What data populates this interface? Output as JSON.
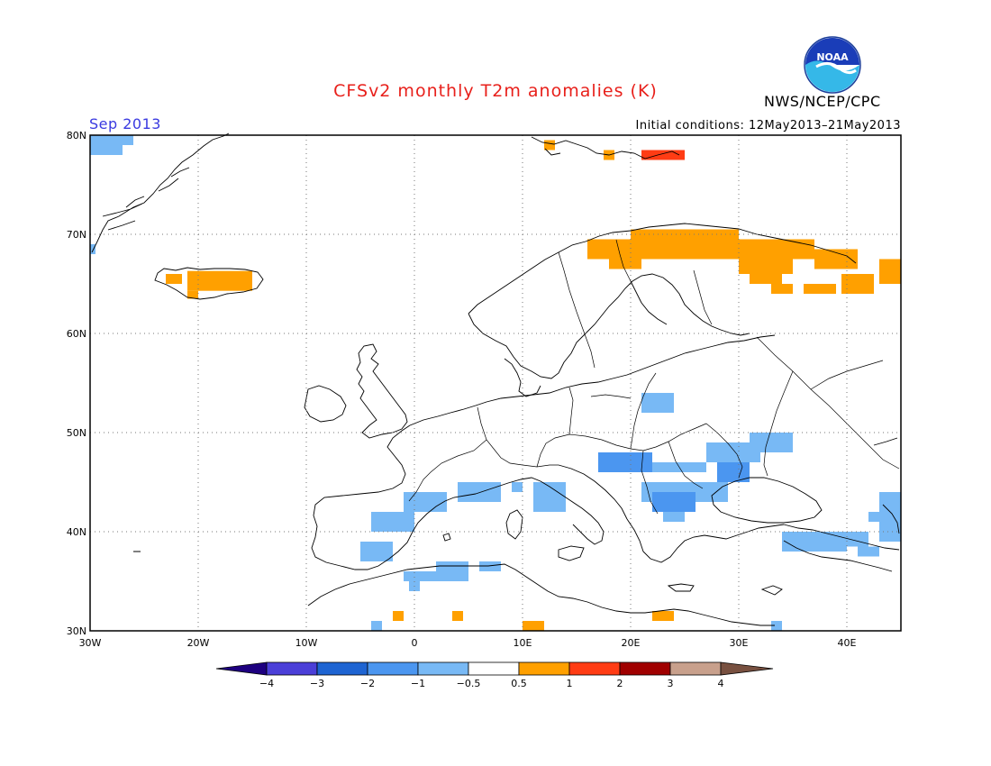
{
  "header": {
    "title": "CFSv2 monthly T2m anomalies (K)",
    "month": "Sep 2013",
    "initial_conditions": "Initial conditions: 12May2013–21May2013",
    "agency": "NWS/NCEP/CPC",
    "logo": {
      "text": "NOAA",
      "icon": "noaa-logo"
    }
  },
  "map": {
    "lon_range": [
      -30,
      45
    ],
    "lat_range": [
      30,
      80
    ],
    "lon_ticks": [
      {
        "value": -30,
        "label": "30W"
      },
      {
        "value": -20,
        "label": "20W"
      },
      {
        "value": -10,
        "label": "10W"
      },
      {
        "value": 0,
        "label": "0"
      },
      {
        "value": 10,
        "label": "10E"
      },
      {
        "value": 20,
        "label": "20E"
      },
      {
        "value": 30,
        "label": "30E"
      },
      {
        "value": 40,
        "label": "40E"
      }
    ],
    "lat_ticks": [
      {
        "value": 30,
        "label": "30N"
      },
      {
        "value": 40,
        "label": "40N"
      },
      {
        "value": 50,
        "label": "50N"
      },
      {
        "value": 60,
        "label": "60N"
      },
      {
        "value": 70,
        "label": "70N"
      },
      {
        "value": 80,
        "label": "80N"
      }
    ],
    "grid": true,
    "anomaly_cells": [
      {
        "lon": [
          -30,
          -26
        ],
        "lat": [
          79,
          80
        ],
        "anomaly": -0.75
      },
      {
        "lon": [
          -30,
          -27
        ],
        "lat": [
          78,
          79
        ],
        "anomaly": -0.75
      },
      {
        "lon": [
          -23,
          -21.5
        ],
        "lat": [
          65,
          66
        ],
        "anomaly": 0.75
      },
      {
        "lon": [
          -21,
          -15
        ],
        "lat": [
          64.3,
          66.3
        ],
        "anomaly": 0.75
      },
      {
        "lon": [
          -21,
          -20
        ],
        "lat": [
          63.5,
          64.3
        ],
        "anomaly": 0.75
      },
      {
        "lon": [
          -19,
          -18
        ],
        "lat": [
          64.5,
          65.5
        ],
        "anomaly": 0.75
      },
      {
        "lon": [
          12,
          13
        ],
        "lat": [
          78.5,
          79.5
        ],
        "anomaly": 0.75
      },
      {
        "lon": [
          17.5,
          18.5
        ],
        "lat": [
          77.5,
          78.5
        ],
        "anomaly": 0.75
      },
      {
        "lon": [
          21,
          25
        ],
        "lat": [
          77.5,
          78.5
        ],
        "anomaly": 1.5
      },
      {
        "lon": [
          16,
          27
        ],
        "lat": [
          67.5,
          69.5
        ],
        "anomaly": 0.75
      },
      {
        "lon": [
          18,
          21
        ],
        "lat": [
          66.5,
          67.5
        ],
        "anomaly": 0.75
      },
      {
        "lon": [
          20,
          30
        ],
        "lat": [
          69.5,
          70.5
        ],
        "anomaly": 0.75
      },
      {
        "lon": [
          27,
          37
        ],
        "lat": [
          67.5,
          69.5
        ],
        "anomaly": 0.75
      },
      {
        "lon": [
          37,
          41
        ],
        "lat": [
          66.5,
          68.5
        ],
        "anomaly": 0.75
      },
      {
        "lon": [
          30,
          35
        ],
        "lat": [
          66,
          67.5
        ],
        "anomaly": 0.75
      },
      {
        "lon": [
          31,
          34
        ],
        "lat": [
          65,
          66
        ],
        "anomaly": 0.75
      },
      {
        "lon": [
          33,
          35
        ],
        "lat": [
          64,
          65
        ],
        "anomaly": 0.75
      },
      {
        "lon": [
          36,
          39
        ],
        "lat": [
          64,
          65
        ],
        "anomaly": 0.75
      },
      {
        "lon": [
          39.5,
          42.5
        ],
        "lat": [
          64,
          66
        ],
        "anomaly": 0.75
      },
      {
        "lon": [
          43,
          45
        ],
        "lat": [
          65,
          67.5
        ],
        "anomaly": 0.75
      },
      {
        "lon": [
          -30,
          -29.5
        ],
        "lat": [
          68,
          69
        ],
        "anomaly": -0.75
      },
      {
        "lon": [
          21,
          24
        ],
        "lat": [
          52,
          54
        ],
        "anomaly": -0.75
      },
      {
        "lon": [
          17,
          22
        ],
        "lat": [
          46,
          48
        ],
        "anomaly": -1.5
      },
      {
        "lon": [
          22,
          27
        ],
        "lat": [
          46,
          47
        ],
        "anomaly": -0.75
      },
      {
        "lon": [
          27,
          32
        ],
        "lat": [
          47,
          49
        ],
        "anomaly": -0.75
      },
      {
        "lon": [
          31,
          35
        ],
        "lat": [
          48,
          50
        ],
        "anomaly": -0.75
      },
      {
        "lon": [
          28,
          31
        ],
        "lat": [
          45,
          47
        ],
        "anomaly": -1.5
      },
      {
        "lon": [
          21,
          29
        ],
        "lat": [
          43,
          45
        ],
        "anomaly": -0.75
      },
      {
        "lon": [
          22,
          26
        ],
        "lat": [
          42,
          44
        ],
        "anomaly": -1.5
      },
      {
        "lon": [
          23,
          25
        ],
        "lat": [
          41,
          42
        ],
        "anomaly": -0.75
      },
      {
        "lon": [
          -1,
          3
        ],
        "lat": [
          42,
          44
        ],
        "anomaly": -0.75
      },
      {
        "lon": [
          4,
          8
        ],
        "lat": [
          43,
          45
        ],
        "anomaly": -0.75
      },
      {
        "lon": [
          11,
          14
        ],
        "lat": [
          42,
          45
        ],
        "anomaly": -0.75
      },
      {
        "lon": [
          9,
          10
        ],
        "lat": [
          44,
          45
        ],
        "anomaly": -0.75
      },
      {
        "lon": [
          -4,
          0
        ],
        "lat": [
          40,
          42
        ],
        "anomaly": -0.75
      },
      {
        "lon": [
          -5,
          -2
        ],
        "lat": [
          37,
          39
        ],
        "anomaly": -0.75
      },
      {
        "lon": [
          -1,
          5
        ],
        "lat": [
          35,
          36
        ],
        "anomaly": -0.75
      },
      {
        "lon": [
          2,
          5
        ],
        "lat": [
          36,
          37
        ],
        "anomaly": -0.75
      },
      {
        "lon": [
          6,
          8
        ],
        "lat": [
          36,
          37
        ],
        "anomaly": -0.75
      },
      {
        "lon": [
          -0.5,
          0.5
        ],
        "lat": [
          34,
          35
        ],
        "anomaly": -0.75
      },
      {
        "lon": [
          34,
          40
        ],
        "lat": [
          38,
          40
        ],
        "anomaly": -0.75
      },
      {
        "lon": [
          40,
          42
        ],
        "lat": [
          38.5,
          40
        ],
        "anomaly": -0.75
      },
      {
        "lon": [
          41,
          43
        ],
        "lat": [
          37.5,
          38.5
        ],
        "anomaly": -0.75
      },
      {
        "lon": [
          43,
          45
        ],
        "lat": [
          39,
          44
        ],
        "anomaly": -0.75
      },
      {
        "lon": [
          42,
          43
        ],
        "lat": [
          41,
          42
        ],
        "anomaly": -0.75
      },
      {
        "lon": [
          -4,
          -3
        ],
        "lat": [
          30,
          31
        ],
        "anomaly": -0.75
      },
      {
        "lon": [
          33,
          34
        ],
        "lat": [
          30,
          31
        ],
        "anomaly": -0.75
      },
      {
        "lon": [
          -2,
          -1
        ],
        "lat": [
          31,
          32
        ],
        "anomaly": 0.75
      },
      {
        "lon": [
          3.5,
          4.5
        ],
        "lat": [
          31,
          32
        ],
        "anomaly": 0.75
      },
      {
        "lon": [
          10,
          12
        ],
        "lat": [
          30,
          31
        ],
        "anomaly": 0.75
      },
      {
        "lon": [
          22,
          24
        ],
        "lat": [
          31,
          32
        ],
        "anomaly": 0.75
      }
    ]
  },
  "colorbar": {
    "labels": [
      "−4",
      "−3",
      "−2",
      "−1",
      "−0.5",
      "0.5",
      "1",
      "2",
      "3",
      "4"
    ],
    "bins": [
      {
        "color": "#1e0080",
        "range": "< -4"
      },
      {
        "color": "#4b3fd8",
        "range": "-4 to -3"
      },
      {
        "color": "#1e64d2",
        "range": "-3 to -2"
      },
      {
        "color": "#4b96f0",
        "range": "-2 to -1"
      },
      {
        "color": "#78b9f5",
        "range": "-1 to -0.5"
      },
      {
        "color": "#ffffff",
        "range": "-0.5 to 0.5"
      },
      {
        "color": "#ffa000",
        "range": "0.5 to 1"
      },
      {
        "color": "#ff3c14",
        "range": "1 to 2"
      },
      {
        "color": "#a00000",
        "range": "2 to 3"
      },
      {
        "color": "#c8a08c",
        "range": "3 to 4"
      },
      {
        "color": "#785040",
        "range": "> 4"
      }
    ]
  }
}
